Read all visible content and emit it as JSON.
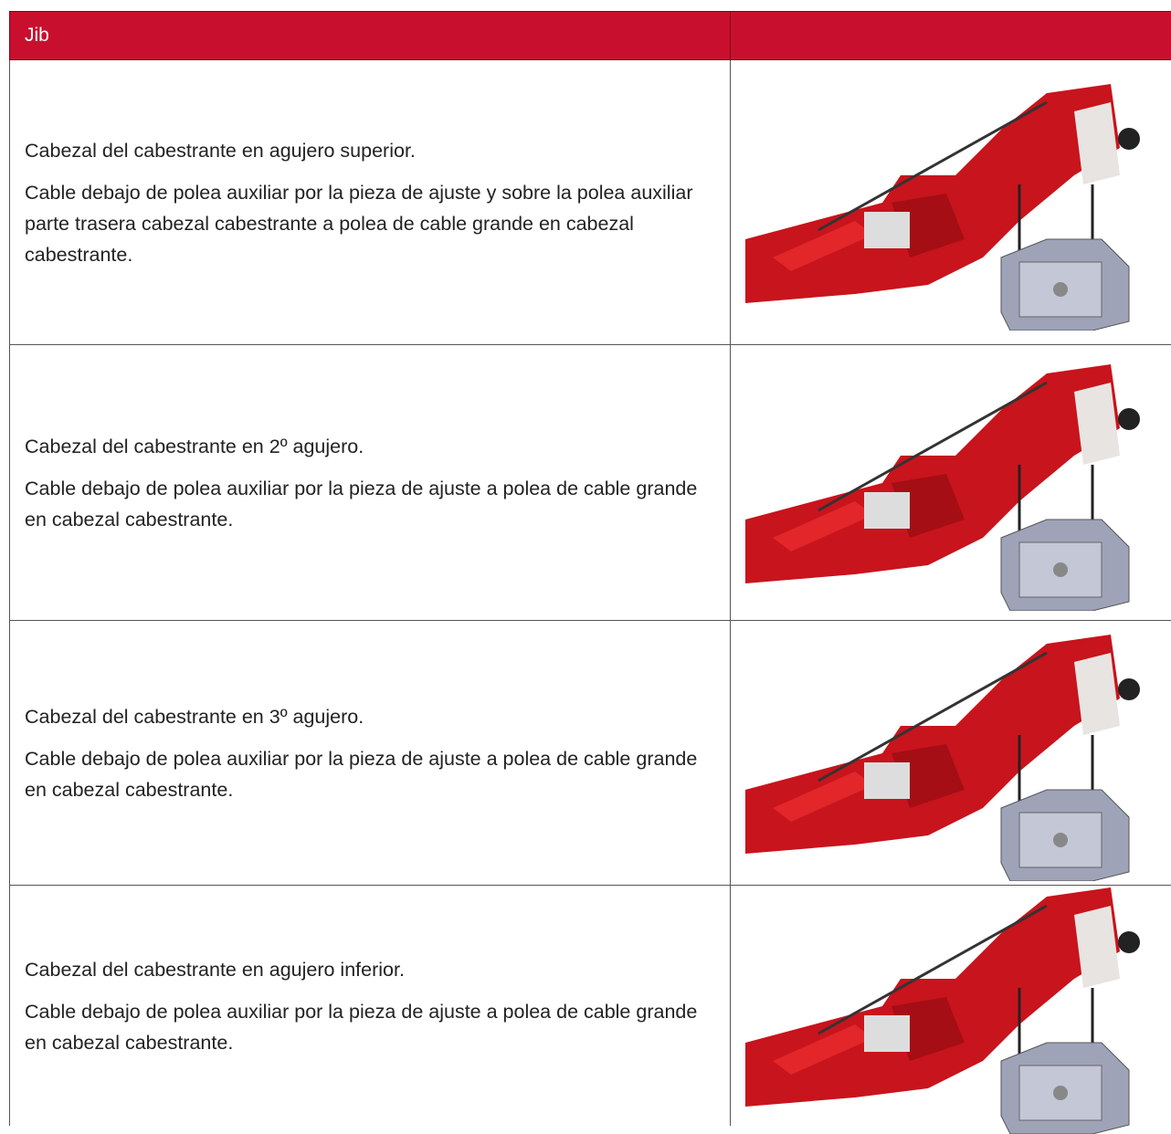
{
  "header": {
    "title": "Jib"
  },
  "rows": [
    {
      "paragraphs": [
        "Cabezal del cabestrante en agujero superior.",
        "Cable debajo de polea auxiliar por la pieza de ajuste y sobre la polea auxiliar parte trasera cabezal cabestrante a polea de cable grande en cabezal cabestrante."
      ]
    },
    {
      "paragraphs": [
        "Cabezal del cabestrante en 2º agujero.",
        "Cable debajo de polea auxiliar por la pieza de ajuste a polea de cable grande en cabezal cabestrante."
      ]
    },
    {
      "paragraphs": [
        "Cabezal del cabestrante en 3º agujero.",
        "Cable debajo de polea auxiliar por la pieza de ajuste a polea de cable grande en cabezal cabestrante."
      ]
    },
    {
      "paragraphs": [
        "Cabezal del cabestrante en agujero inferior.",
        "Cable debajo de polea auxiliar por la pieza de ajuste a polea de cable grande en cabezal cabestrante."
      ]
    }
  ]
}
